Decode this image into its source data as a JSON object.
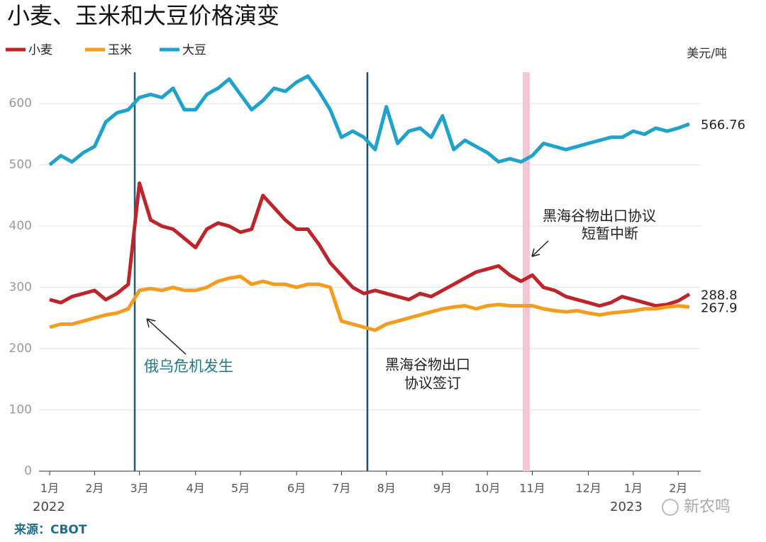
{
  "chart_data": {
    "type": "line",
    "title": "小麦、玉米和大豆价格演变",
    "unit_label": "美元/吨",
    "source": "来源：CBOT",
    "watermark": "新农鸣",
    "years": [
      "2022",
      "2023"
    ],
    "categories": [
      "1月",
      null,
      null,
      null,
      "2月",
      null,
      null,
      null,
      "3月",
      null,
      null,
      null,
      null,
      "4月",
      null,
      null,
      null,
      "5月",
      null,
      null,
      null,
      null,
      "6月",
      null,
      null,
      null,
      "7月",
      null,
      null,
      null,
      "8月",
      null,
      null,
      null,
      null,
      "9月",
      null,
      null,
      null,
      "10月",
      null,
      null,
      null,
      "11月",
      null,
      null,
      null,
      null,
      "12月",
      null,
      null,
      null,
      "1月",
      null,
      null,
      null,
      "2月",
      null
    ],
    "series": [
      {
        "name": "小麦",
        "color": "#c0242b",
        "values": [
          280,
          275,
          285,
          290,
          295,
          280,
          290,
          305,
          470,
          410,
          400,
          395,
          380,
          365,
          395,
          405,
          400,
          390,
          395,
          450,
          430,
          410,
          395,
          395,
          370,
          340,
          320,
          300,
          290,
          295,
          290,
          285,
          280,
          290,
          285,
          295,
          305,
          315,
          325,
          330,
          335,
          320,
          310,
          320,
          300,
          295,
          285,
          280,
          275,
          270,
          275,
          285,
          280,
          275,
          270,
          272,
          278,
          288.8
        ],
        "value_labels": [
          null,
          null,
          null,
          null,
          null,
          null,
          null,
          null,
          null,
          null,
          null,
          null,
          null,
          null,
          null,
          null,
          null,
          null,
          null,
          null,
          null,
          null,
          null,
          null,
          null,
          null,
          null,
          null,
          null,
          null,
          null,
          null,
          null,
          null,
          null,
          null,
          null,
          null,
          null,
          null,
          null,
          null,
          null,
          null,
          null,
          null,
          null,
          null,
          null,
          null,
          null,
          null,
          null,
          null,
          null,
          null,
          null,
          "288.8"
        ]
      },
      {
        "name": "玉米",
        "color": "#f39c1e",
        "values": [
          235,
          240,
          240,
          245,
          250,
          255,
          258,
          265,
          295,
          298,
          295,
          300,
          295,
          295,
          300,
          310,
          315,
          318,
          305,
          310,
          305,
          305,
          300,
          305,
          305,
          300,
          245,
          240,
          235,
          230,
          240,
          245,
          250,
          255,
          260,
          265,
          268,
          270,
          265,
          270,
          272,
          270,
          270,
          270,
          265,
          262,
          260,
          262,
          258,
          255,
          258,
          260,
          262,
          265,
          265,
          268,
          270,
          267.9
        ],
        "value_labels": [
          null,
          null,
          null,
          null,
          null,
          null,
          null,
          null,
          null,
          null,
          null,
          null,
          null,
          null,
          null,
          null,
          null,
          null,
          null,
          null,
          null,
          null,
          null,
          null,
          null,
          null,
          null,
          null,
          null,
          null,
          null,
          null,
          null,
          null,
          null,
          null,
          null,
          null,
          null,
          null,
          null,
          null,
          null,
          null,
          null,
          null,
          null,
          null,
          null,
          null,
          null,
          null,
          null,
          null,
          null,
          null,
          null,
          "267.9"
        ]
      },
      {
        "name": "大豆",
        "color": "#1fa3cc",
        "values": [
          500,
          515,
          505,
          520,
          530,
          570,
          585,
          590,
          610,
          615,
          610,
          625,
          590,
          590,
          615,
          625,
          640,
          615,
          590,
          605,
          625,
          620,
          635,
          645,
          620,
          590,
          545,
          555,
          545,
          525,
          595,
          535,
          555,
          560,
          545,
          580,
          525,
          540,
          530,
          520,
          505,
          510,
          505,
          515,
          535,
          530,
          525,
          530,
          535,
          540,
          545,
          545,
          555,
          550,
          560,
          555,
          560,
          566.76
        ],
        "value_labels": [
          null,
          null,
          null,
          null,
          null,
          null,
          null,
          null,
          null,
          null,
          null,
          null,
          null,
          null,
          null,
          null,
          null,
          null,
          null,
          null,
          null,
          null,
          null,
          null,
          null,
          null,
          null,
          null,
          null,
          null,
          null,
          null,
          null,
          null,
          null,
          null,
          null,
          null,
          null,
          null,
          null,
          null,
          null,
          null,
          null,
          null,
          null,
          null,
          null,
          null,
          null,
          null,
          null,
          null,
          null,
          null,
          null,
          "566.76"
        ]
      }
    ],
    "ylim": [
      0,
      650
    ],
    "yticks": [
      0,
      100,
      200,
      300,
      400,
      500,
      600
    ],
    "grid": true,
    "annotations": [
      [
        "俄乌危机发生"
      ],
      [
        "黑海谷物出口",
        "协议签订"
      ],
      [
        "黑海谷物出口协议",
        "短暂中断"
      ]
    ]
  }
}
